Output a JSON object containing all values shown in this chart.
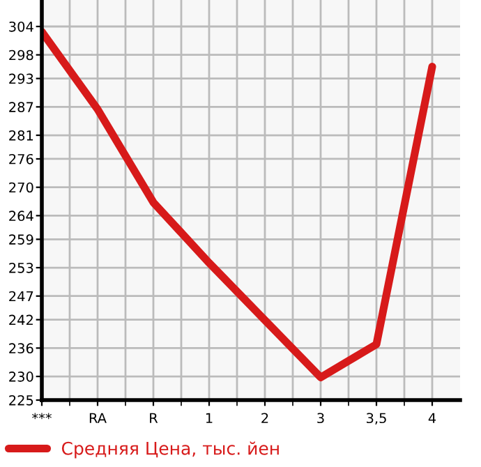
{
  "chart_data": {
    "type": "line",
    "categories": [
      "***",
      "RA",
      "R",
      "1",
      "2",
      "3",
      "3,5",
      "4"
    ],
    "series": [
      {
        "name": "Средняя Цена, тыс. йен",
        "color": "#d71a1a",
        "values": [
          302.9,
          286.5,
          266.8,
          254,
          241.9,
          229.8,
          236.8,
          295.5
        ]
      }
    ],
    "ylim": [
      225,
      309.6
    ],
    "yticks": [
      225,
      230,
      236,
      242,
      247,
      253,
      259,
      264,
      270,
      276,
      281,
      287,
      293,
      298,
      304
    ],
    "grid": true,
    "legend": "bottom",
    "marker": "none",
    "line_style": "solid"
  }
}
